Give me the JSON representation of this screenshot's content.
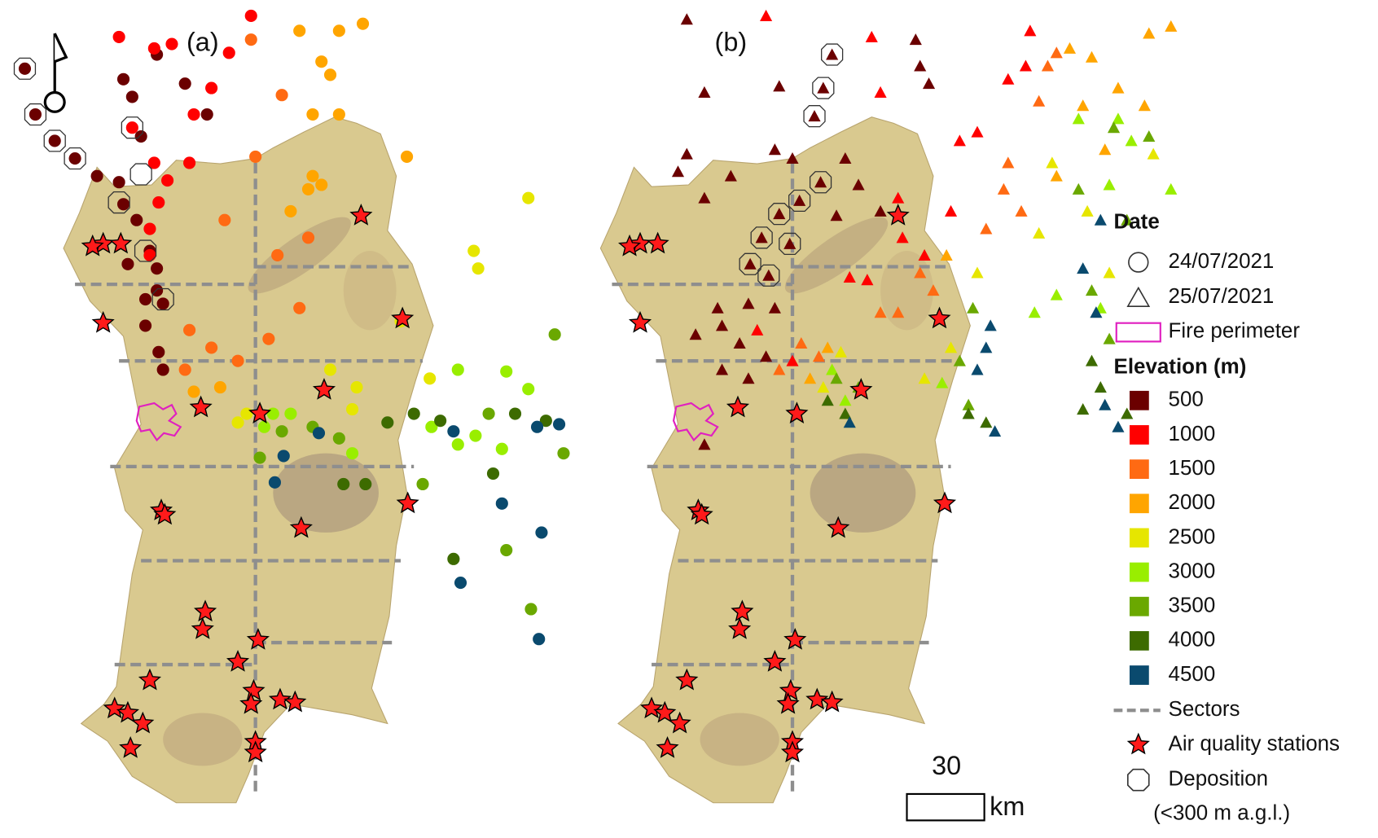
{
  "panels": [
    "(a)",
    "(b)"
  ],
  "legend": {
    "date_title": "Date",
    "dates": [
      "24/07/2021",
      "25/07/2021"
    ],
    "fire_perimeter": "Fire perimeter",
    "elevation_title": "Elevation (m)",
    "elevation_classes": [
      {
        "value": 500,
        "color": "#6b0000"
      },
      {
        "value": 1000,
        "color": "#ff0000"
      },
      {
        "value": 1500,
        "color": "#ff6a13"
      },
      {
        "value": 2000,
        "color": "#ffa500"
      },
      {
        "value": 2500,
        "color": "#e6e600"
      },
      {
        "value": 3000,
        "color": "#99ee00"
      },
      {
        "value": 3500,
        "color": "#6aa800"
      },
      {
        "value": 4000,
        "color": "#3d6b00"
      },
      {
        "value": 4500,
        "color": "#0a4a6e"
      }
    ],
    "sectors": "Sectors",
    "air_quality": "Air quality stations",
    "deposition": "Deposition",
    "deposition_note": "(<300 m a.g.l.)"
  },
  "scale_bar": {
    "value": 30,
    "unit": "km"
  }
}
